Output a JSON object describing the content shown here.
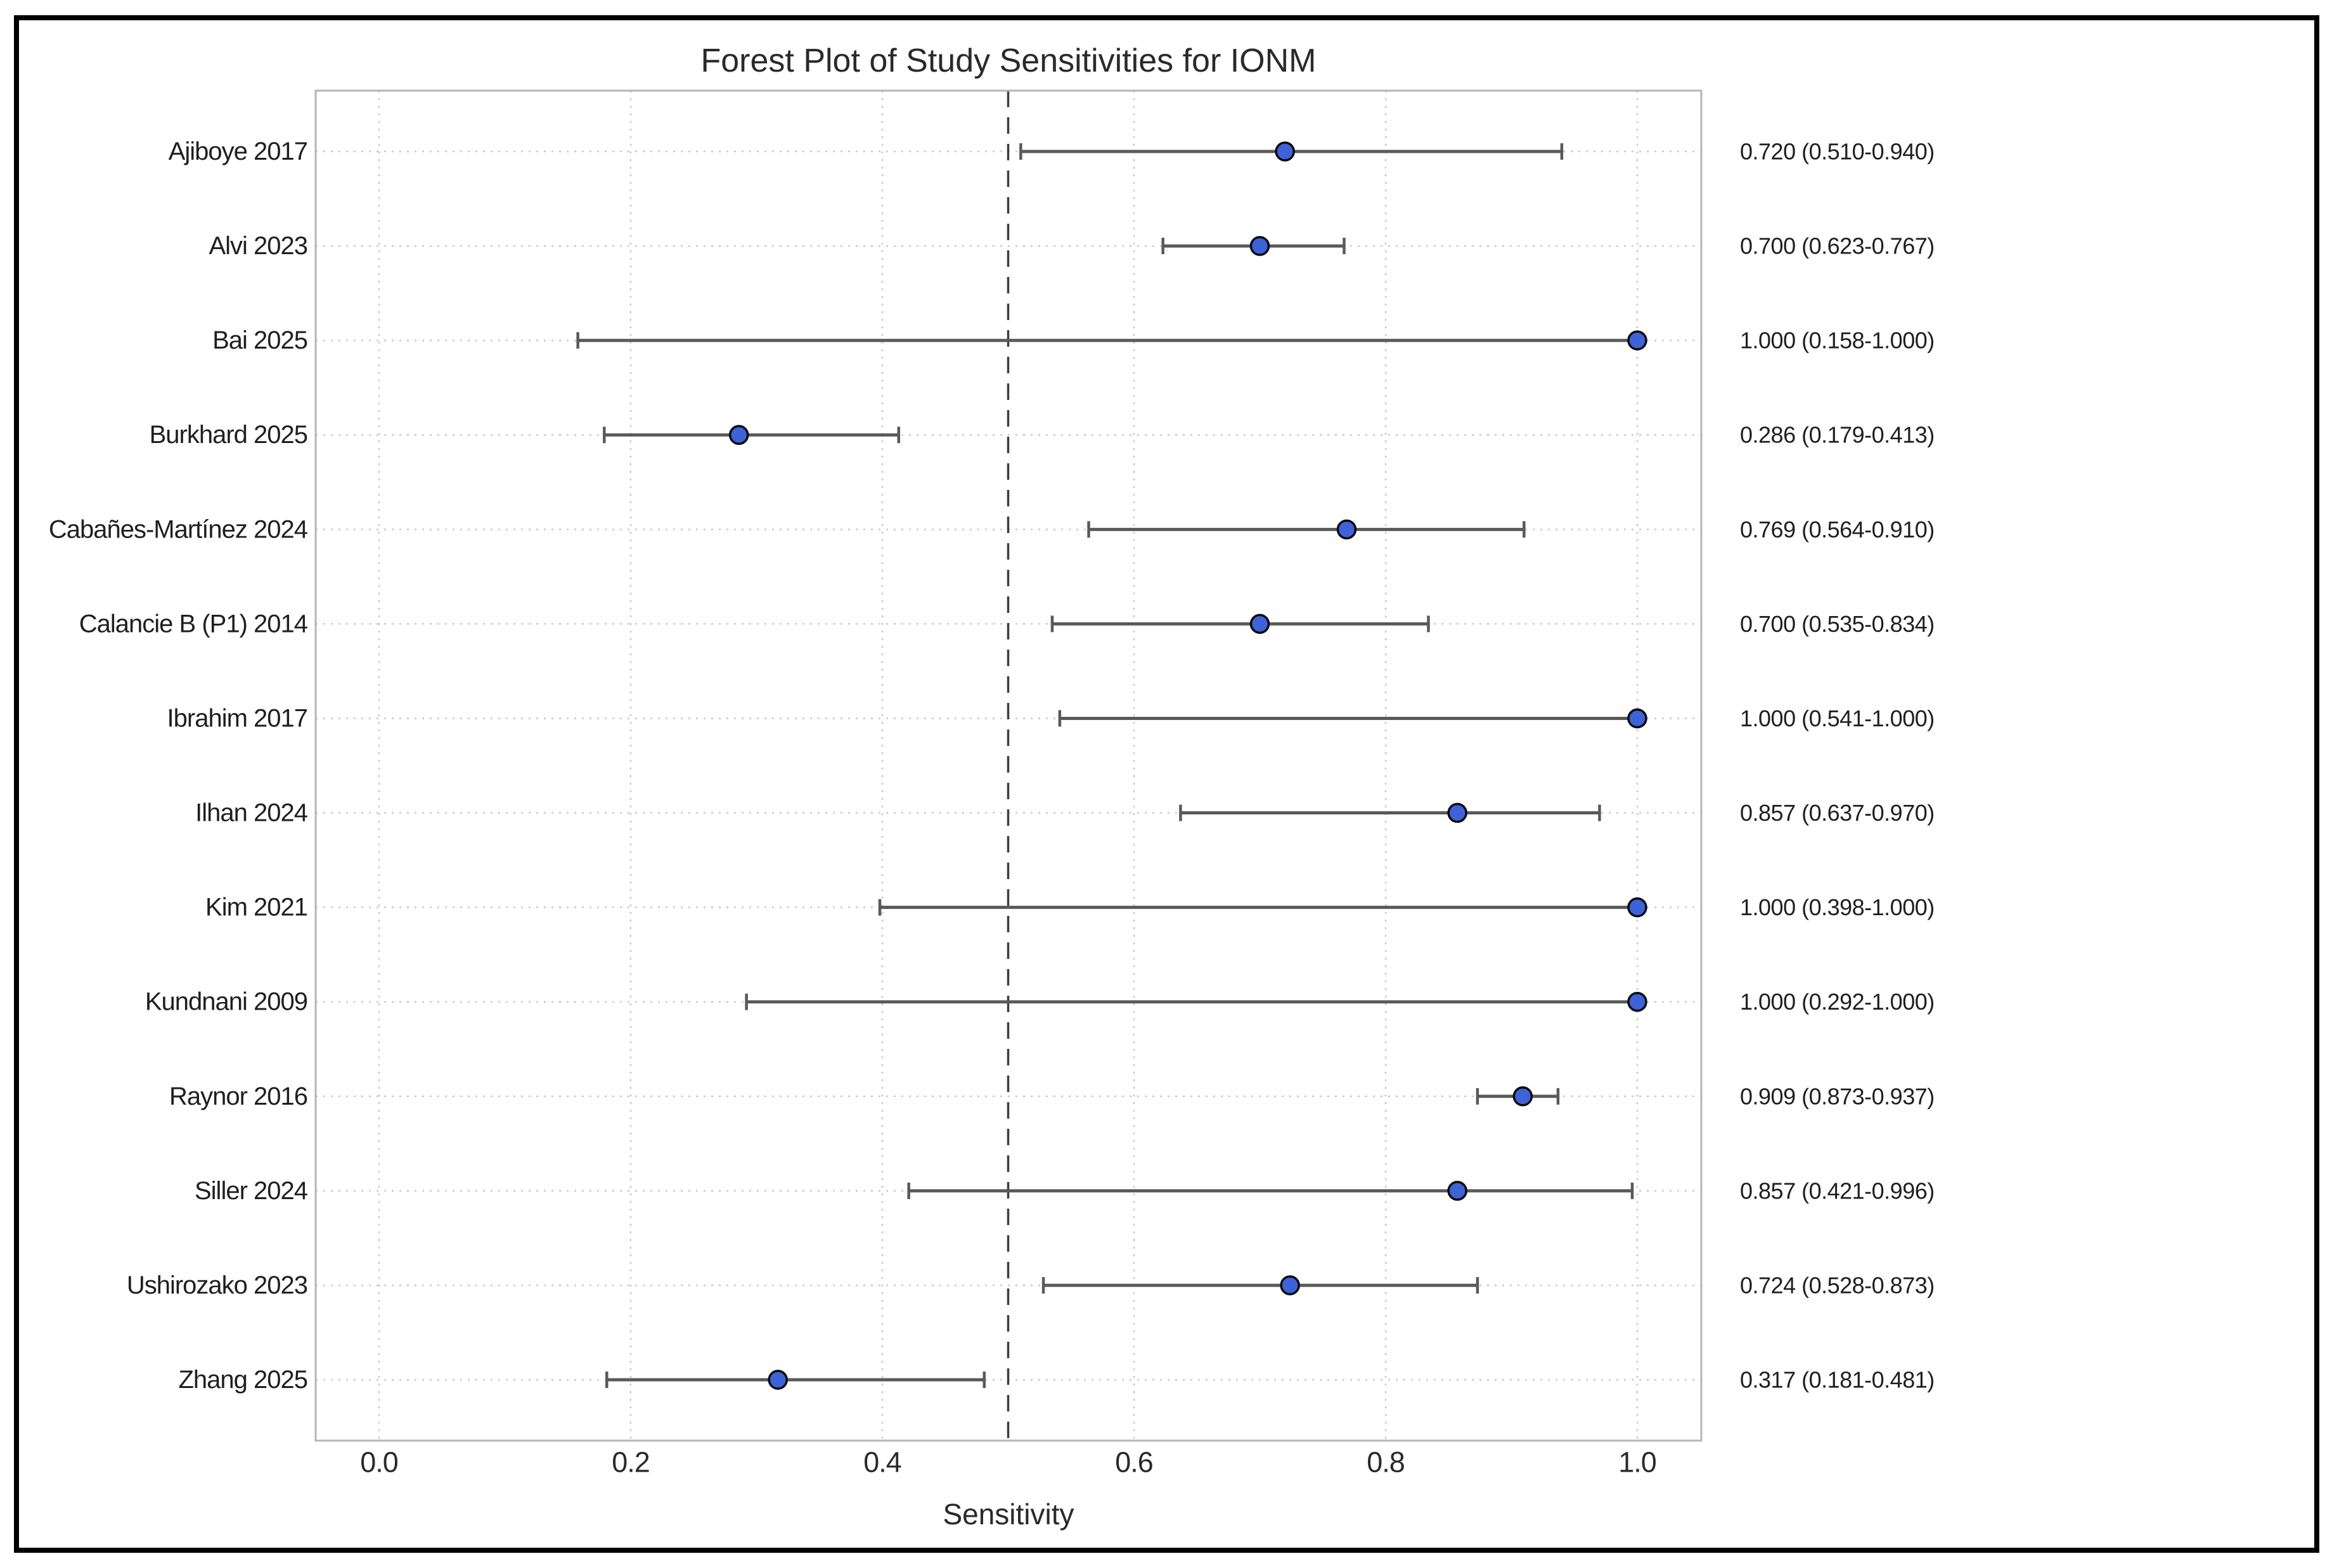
{
  "title": "Forest Plot of Study Sensitivities for IONM",
  "chart_data": {
    "type": "scatter",
    "title": "Forest Plot of Study Sensitivities for IONM",
    "xlabel": "Sensitivity",
    "xlim": [
      -0.05,
      1.05
    ],
    "x_ticks": [
      0.0,
      0.2,
      0.4,
      0.6,
      0.8,
      1.0
    ],
    "x_tick_labels": [
      "0.0",
      "0.2",
      "0.4",
      "0.6",
      "0.8",
      "1.0"
    ],
    "reference_line_x": 0.5,
    "grid": "dotted",
    "legend": "none",
    "studies": [
      {
        "label": "Ajiboye 2017",
        "estimate": 0.72,
        "ci_low": 0.51,
        "ci_high": 0.94,
        "annotation": "0.720 (0.510-0.940)"
      },
      {
        "label": "Alvi 2023",
        "estimate": 0.7,
        "ci_low": 0.623,
        "ci_high": 0.767,
        "annotation": "0.700 (0.623-0.767)"
      },
      {
        "label": "Bai 2025",
        "estimate": 1.0,
        "ci_low": 0.158,
        "ci_high": 1.0,
        "annotation": "1.000 (0.158-1.000)"
      },
      {
        "label": "Burkhard 2025",
        "estimate": 0.286,
        "ci_low": 0.179,
        "ci_high": 0.413,
        "annotation": "0.286 (0.179-0.413)"
      },
      {
        "label": "Cabañes-Martínez 2024",
        "estimate": 0.769,
        "ci_low": 0.564,
        "ci_high": 0.91,
        "annotation": "0.769 (0.564-0.910)"
      },
      {
        "label": "Calancie B (P1) 2014",
        "estimate": 0.7,
        "ci_low": 0.535,
        "ci_high": 0.834,
        "annotation": "0.700 (0.535-0.834)"
      },
      {
        "label": "Ibrahim 2017",
        "estimate": 1.0,
        "ci_low": 0.541,
        "ci_high": 1.0,
        "annotation": "1.000 (0.541-1.000)"
      },
      {
        "label": "Ilhan 2024",
        "estimate": 0.857,
        "ci_low": 0.637,
        "ci_high": 0.97,
        "annotation": "0.857 (0.637-0.970)"
      },
      {
        "label": "Kim 2021",
        "estimate": 1.0,
        "ci_low": 0.398,
        "ci_high": 1.0,
        "annotation": "1.000 (0.398-1.000)"
      },
      {
        "label": "Kundnani 2009",
        "estimate": 1.0,
        "ci_low": 0.292,
        "ci_high": 1.0,
        "annotation": "1.000 (0.292-1.000)"
      },
      {
        "label": "Raynor 2016",
        "estimate": 0.909,
        "ci_low": 0.873,
        "ci_high": 0.937,
        "annotation": "0.909 (0.873-0.937)"
      },
      {
        "label": "Siller 2024",
        "estimate": 0.857,
        "ci_low": 0.421,
        "ci_high": 0.996,
        "annotation": "0.857 (0.421-0.996)"
      },
      {
        "label": "Ushirozako 2023",
        "estimate": 0.724,
        "ci_low": 0.528,
        "ci_high": 0.873,
        "annotation": "0.724 (0.528-0.873)"
      },
      {
        "label": "Zhang 2025",
        "estimate": 0.317,
        "ci_low": 0.181,
        "ci_high": 0.481,
        "annotation": "0.317 (0.181-0.481)"
      }
    ],
    "colors": {
      "marker_fill": "#3e62d8",
      "marker_edge": "#0a0a0a",
      "ci_line": "#595959",
      "reference_line": "#3d3d3d",
      "grid_line": "#c9c9c9",
      "spine": "#b5b5b5",
      "frame": "#000000",
      "text": "#262626",
      "background": "#ffffff"
    }
  }
}
